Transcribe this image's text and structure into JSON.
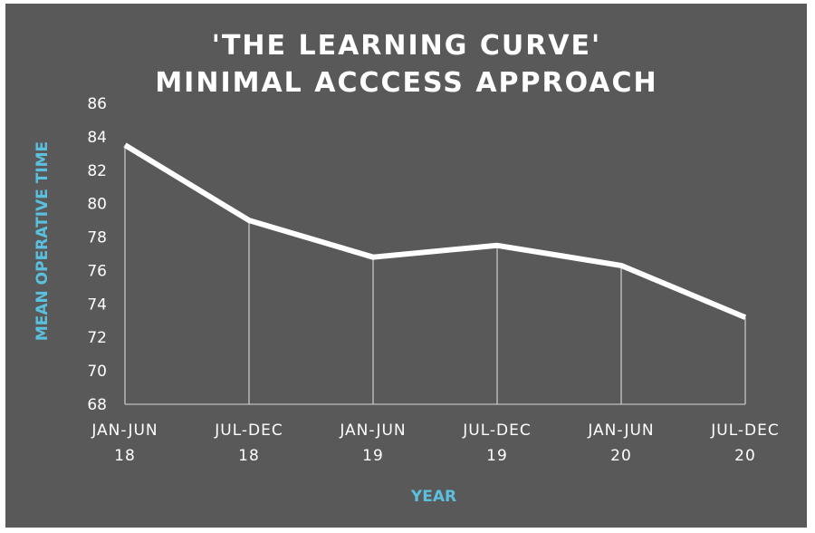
{
  "chart_data": {
    "type": "line",
    "title_lines": [
      "'THE LEARNING CURVE'",
      "MINIMAL ACCCESS APPROACH"
    ],
    "xlabel": "YEAR",
    "ylabel": "MEAN OPERATIVE TIME",
    "categories": [
      [
        "JAN-JUN",
        "18"
      ],
      [
        "JUL-DEC",
        "18"
      ],
      [
        "JAN-JUN",
        "19"
      ],
      [
        "JUL-DEC",
        "19"
      ],
      [
        "JAN-JUN",
        "20"
      ],
      [
        "JUL-DEC",
        "20"
      ]
    ],
    "values": [
      83.5,
      79.0,
      76.8,
      77.5,
      76.3,
      73.2
    ],
    "ylim": [
      68,
      86
    ],
    "yticks": [
      "68",
      "70",
      "72",
      "74",
      "76",
      "78",
      "80",
      "82",
      "84",
      "86"
    ],
    "grid": false,
    "drop_lines": true,
    "colors": {
      "background": "#595959",
      "line": "#ffffff",
      "axis_label": "#5bc0de"
    }
  }
}
